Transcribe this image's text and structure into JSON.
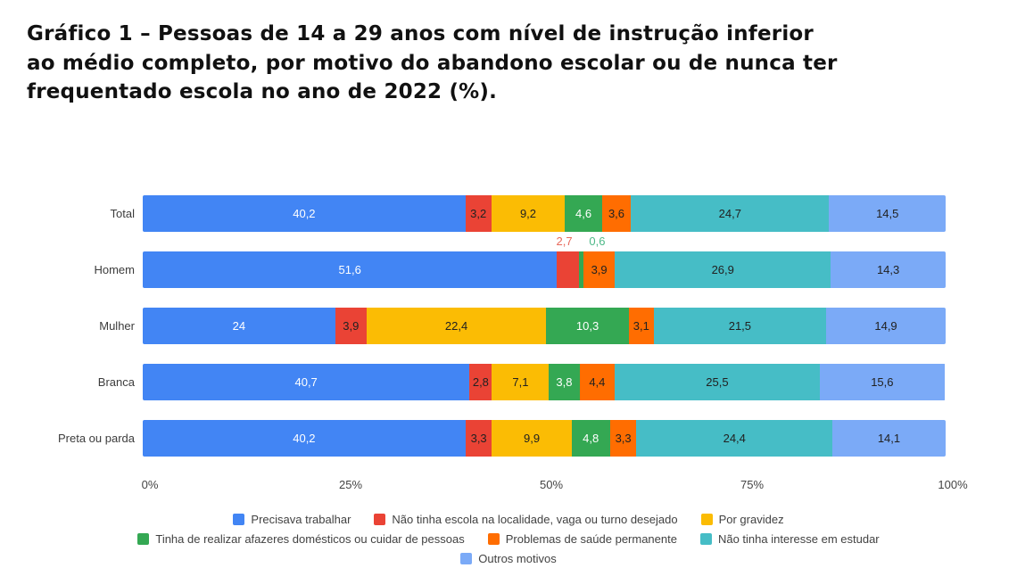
{
  "title": {
    "lines": [
      "Gráfico 1 – Pessoas de 14 a 29 anos com nível de instrução inferior",
      "ao médio completo, por motivo do abandono escolar ou de nunca ter",
      "frequentado escola no ano de 2022 (%)."
    ]
  },
  "chart_data": {
    "type": "bar",
    "orientation": "horizontal",
    "stacked": true,
    "unit": "%",
    "xlim": [
      0,
      100
    ],
    "x_ticks": [
      "0%",
      "25%",
      "50%",
      "75%",
      "100%"
    ],
    "grid": false,
    "legend_position": "bottom",
    "categories": [
      "Total",
      "Homem",
      "Mulher",
      "Branca",
      "Preta ou parda"
    ],
    "series": [
      {
        "name": "Precisava trabalhar",
        "color": "#4285f4",
        "label_color": "#ffffff",
        "values": [
          40.2,
          51.6,
          24,
          40.7,
          40.2
        ]
      },
      {
        "name": "Não tinha escola na localidade, vaga ou turno desejado",
        "color": "#ea4335",
        "label_color": "#212121",
        "values": [
          3.2,
          2.7,
          3.9,
          2.8,
          3.3
        ]
      },
      {
        "name": "Por gravidez",
        "color": "#fbbc04",
        "label_color": "#212121",
        "values": [
          9.2,
          0,
          22.4,
          7.1,
          9.9
        ]
      },
      {
        "name": "Tinha de realizar afazeres domésticos ou cuidar de pessoas",
        "color": "#34a853",
        "label_color": "#ffffff",
        "values": [
          4.6,
          0.6,
          10.3,
          3.8,
          4.8
        ]
      },
      {
        "name": "Problemas de saúde permanente",
        "color": "#ff6d01",
        "label_color": "#212121",
        "values": [
          3.6,
          3.9,
          3.1,
          4.4,
          3.3
        ]
      },
      {
        "name": "Não tinha interesse em estudar",
        "color": "#46bdc6",
        "label_color": "#212121",
        "values": [
          24.7,
          26.9,
          21.5,
          25.5,
          24.4
        ]
      },
      {
        "name": "Outros motivos",
        "color": "#7baaf7",
        "label_color": "#212121",
        "values": [
          14.5,
          14.3,
          14.9,
          15.6,
          14.1
        ]
      }
    ],
    "bar_labels": [
      [
        "40,2",
        "3,2",
        "9,2",
        "4,6",
        "3,6",
        "24,7",
        "14,5"
      ],
      [
        "51,6",
        "",
        "",
        "",
        "3,9",
        "26,9",
        "14,3"
      ],
      [
        "24",
        "3,9",
        "22,4",
        "10,3",
        "3,1",
        "21,5",
        "14,9"
      ],
      [
        "40,7",
        "2,8",
        "7,1",
        "3,8",
        "4,4",
        "25,5",
        "15,6"
      ],
      [
        "40,2",
        "3,3",
        "9,9",
        "4,8",
        "3,3",
        "24,4",
        "14,1"
      ]
    ],
    "outside_annotations": [
      {
        "row": 1,
        "series": 1,
        "text": "2,7",
        "color": "#e8695b",
        "dx": -12
      },
      {
        "row": 1,
        "series": 3,
        "text": "0,6",
        "color": "#4db887",
        "dx": 10
      }
    ],
    "legend_rows": [
      [
        0,
        1,
        2
      ],
      [
        3,
        4,
        5
      ],
      [
        6
      ]
    ]
  }
}
